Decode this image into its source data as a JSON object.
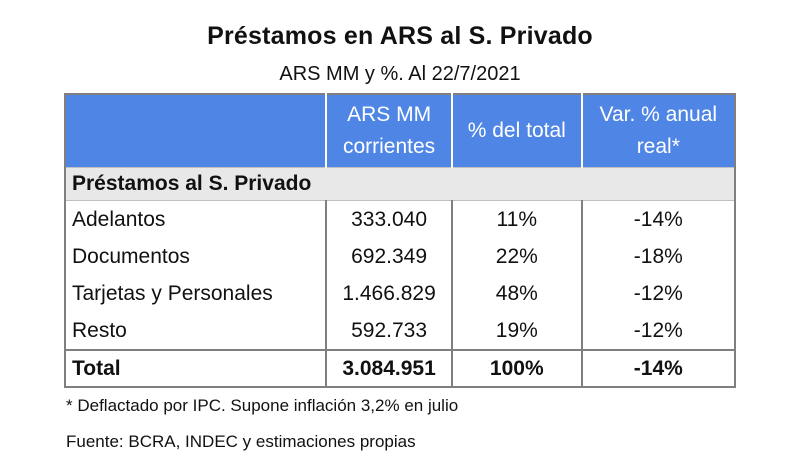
{
  "title": "Préstamos en ARS al S. Privado",
  "subtitle": "ARS MM y %. Al 22/7/2021",
  "table": {
    "headers": {
      "col1": "",
      "col2_line1": "ARS MM",
      "col2_line2": "corrientes",
      "col3": "% del total",
      "col4_line1": "Var. % anual",
      "col4_line2": "real*"
    },
    "section_label": "Préstamos al S. Privado",
    "rows": [
      {
        "label": "Adelantos",
        "ars_mm": "333.040",
        "pct_total": "11%",
        "var_real": "-14%"
      },
      {
        "label": "Documentos",
        "ars_mm": "692.349",
        "pct_total": "22%",
        "var_real": "-18%"
      },
      {
        "label": "Tarjetas y Personales",
        "ars_mm": "1.466.829",
        "pct_total": "48%",
        "var_real": "-12%"
      },
      {
        "label": "Resto",
        "ars_mm": "592.733",
        "pct_total": "19%",
        "var_real": "-12%"
      }
    ],
    "total": {
      "label": "Total",
      "ars_mm": "3.084.951",
      "pct_total": "100%",
      "var_real": "-14%"
    }
  },
  "footnotes": {
    "deflactado": "* Deflactado por IPC. Supone inflación 3,2% en julio",
    "fuente": "Fuente: BCRA, INDEC y estimaciones propias"
  },
  "colors": {
    "header_bg": "#4f86e6",
    "section_bg": "#e8e8e8",
    "border": "#7f7f7f"
  }
}
